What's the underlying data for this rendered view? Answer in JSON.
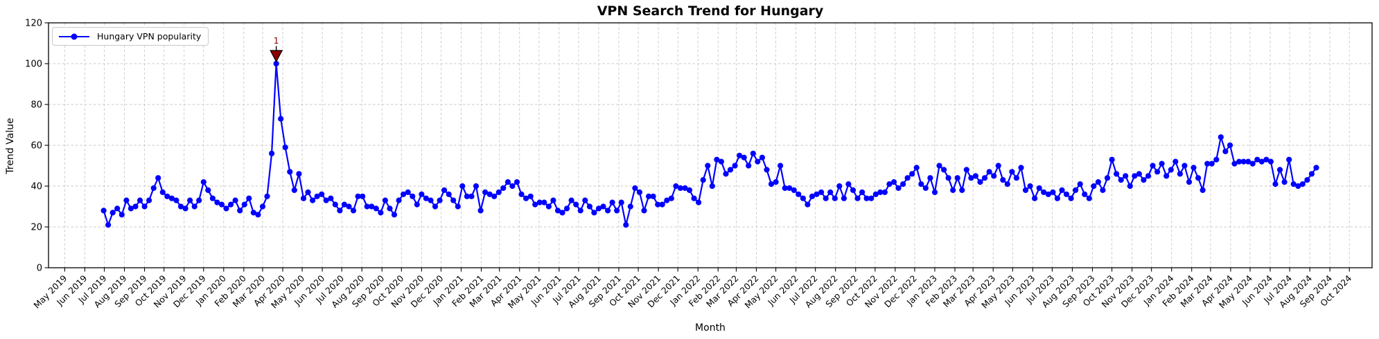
{
  "chart_data": {
    "type": "line",
    "title": "VPN Search Trend for Hungary",
    "xlabel": "Month",
    "ylabel": "Trend Value",
    "ylim": [
      0,
      120
    ],
    "y_ticks": [
      0,
      20,
      40,
      60,
      80,
      100,
      120
    ],
    "x_tick_labels": [
      "May 2019",
      "Jun 2019",
      "Jul 2019",
      "Aug 2019",
      "Sep 2019",
      "Oct 2019",
      "Nov 2019",
      "Dec 2019",
      "Jan 2020",
      "Feb 2020",
      "Mar 2020",
      "Apr 2020",
      "May 2020",
      "Jun 2020",
      "Jul 2020",
      "Aug 2020",
      "Sep 2020",
      "Oct 2020",
      "Nov 2020",
      "Dec 2020",
      "Jan 2021",
      "Feb 2021",
      "Mar 2021",
      "Apr 2021",
      "May 2021",
      "Jun 2021",
      "Jul 2021",
      "Aug 2021",
      "Sep 2021",
      "Oct 2021",
      "Nov 2021",
      "Dec 2021",
      "Jan 2022",
      "Feb 2022",
      "Mar 2022",
      "Apr 2022",
      "May 2022",
      "Jun 2022",
      "Jul 2022",
      "Aug 2022",
      "Sep 2022",
      "Oct 2022",
      "Nov 2022",
      "Dec 2022",
      "Jan 2023",
      "Feb 2023",
      "Mar 2023",
      "Apr 2023",
      "May 2023",
      "Jun 2023",
      "Jul 2023",
      "Aug 2023",
      "Sep 2023",
      "Oct 2023",
      "Nov 2023",
      "Dec 2023",
      "Jan 2024",
      "Feb 2024",
      "Mar 2024",
      "Apr 2024",
      "May 2024",
      "Jun 2024",
      "Jul 2024",
      "Aug 2024",
      "Sep 2024",
      "Oct 2024"
    ],
    "grid": true,
    "legend": {
      "position": "upper-left",
      "label": "Hungary VPN popularity"
    },
    "annotation": {
      "text": "1",
      "target": "max-point",
      "color": "#8b0000"
    },
    "series": [
      {
        "name": "Hungary VPN popularity",
        "color": "#0000ff",
        "marker": "circle",
        "start_week": "2019-06-30",
        "interval_days": 7,
        "values": [
          28,
          21,
          27,
          29,
          26,
          33,
          29,
          30,
          33,
          30,
          33,
          39,
          44,
          37,
          35,
          34,
          33,
          30,
          29,
          33,
          30,
          33,
          42,
          38,
          34,
          32,
          31,
          29,
          31,
          33,
          28,
          31,
          34,
          27,
          26,
          30,
          35,
          56,
          100,
          73,
          59,
          47,
          38,
          46,
          34,
          37,
          33,
          35,
          36,
          33,
          34,
          31,
          28,
          31,
          30,
          28,
          35,
          35,
          30,
          30,
          29,
          27,
          33,
          29,
          26,
          33,
          36,
          37,
          35,
          31,
          36,
          34,
          33,
          30,
          33,
          38,
          36,
          33,
          30,
          40,
          35,
          35,
          40,
          28,
          37,
          36,
          35,
          37,
          39,
          42,
          40,
          42,
          36,
          34,
          35,
          31,
          32,
          32,
          30,
          33,
          28,
          27,
          29,
          33,
          31,
          28,
          33,
          30,
          27,
          29,
          30,
          28,
          32,
          28,
          32,
          21,
          30,
          39,
          37,
          28,
          35,
          35,
          31,
          31,
          33,
          34,
          40,
          39,
          39,
          38,
          34,
          32,
          43,
          50,
          40,
          53,
          52,
          46,
          48,
          50,
          55,
          54,
          50,
          56,
          52,
          54,
          48,
          41,
          42,
          50,
          39,
          39,
          38,
          36,
          34,
          31,
          35,
          36,
          37,
          34,
          37,
          34,
          40,
          34,
          41,
          38,
          34,
          37,
          34,
          34,
          36,
          37,
          37,
          41,
          42,
          39,
          41,
          44,
          46,
          49,
          41,
          39,
          44,
          37,
          50,
          48,
          44,
          38,
          44,
          38,
          48,
          44,
          45,
          42,
          44,
          47,
          45,
          50,
          43,
          41,
          47,
          44,
          49,
          38,
          40,
          34,
          39,
          37,
          36,
          37,
          34,
          38,
          36,
          34,
          38,
          41,
          36,
          34,
          40,
          42,
          38,
          44,
          53,
          46,
          43,
          45,
          40,
          45,
          46,
          43,
          45,
          50,
          47,
          51,
          45,
          48,
          52,
          46,
          50,
          42,
          49,
          44,
          38,
          51,
          51,
          53,
          64,
          57,
          60,
          51,
          52,
          52,
          52,
          51,
          53,
          52,
          53,
          52,
          41,
          48,
          42,
          53,
          41,
          40,
          41,
          43,
          46,
          49
        ]
      }
    ]
  },
  "colors": {
    "line": "#0000ff",
    "annotation": "#8b0000",
    "grid": "#c9c9c9",
    "spine": "#000000",
    "background": "#ffffff",
    "text": "#000000"
  }
}
